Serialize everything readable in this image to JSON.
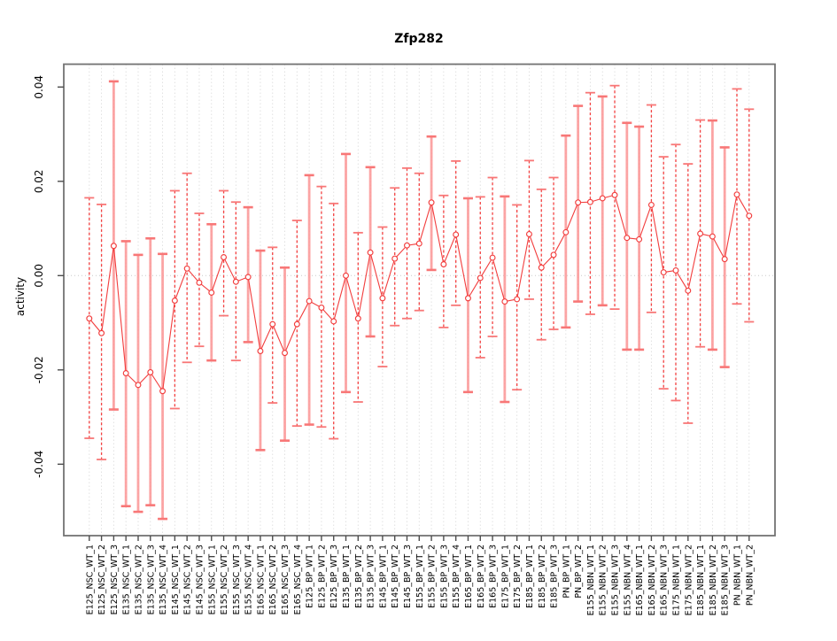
{
  "title": "Zfp282",
  "chart_data": {
    "type": "scatter",
    "subtype": "points-with-error-bars-connected",
    "title": "Zfp282",
    "xlabel": "",
    "ylabel": "activity",
    "ylim": [
      -0.055,
      0.0455
    ],
    "yticks": [
      -0.04,
      -0.02,
      0.0,
      0.02,
      0.04
    ],
    "grid": "vertical dashed gridline at every category; dotted horizontal line at y=0",
    "legend": "none",
    "categories": [
      "E125_NSC_WT_1",
      "E125_NSC_WT_2",
      "E125_NSC_WT_3",
      "E135_NSC_WT_1",
      "E135_NSC_WT_2",
      "E135_NSC_WT_3",
      "E135_NSC_WT_4",
      "E145_NSC_WT_1",
      "E145_NSC_WT_2",
      "E145_NSC_WT_3",
      "E155_NSC_WT_1",
      "E155_NSC_WT_2",
      "E155_NSC_WT_3",
      "E155_NSC_WT_4",
      "E165_NSC_WT_1",
      "E165_NSC_WT_2",
      "E165_NSC_WT_3",
      "E165_NSC_WT_4",
      "E125_BP_WT_1",
      "E125_BP_WT_2",
      "E125_BP_WT_3",
      "E135_BP_WT_1",
      "E135_BP_WT_2",
      "E135_BP_WT_3",
      "E145_BP_WT_1",
      "E145_BP_WT_2",
      "E145_BP_WT_3",
      "E155_BP_WT_1",
      "E155_BP_WT_2",
      "E155_BP_WT_3",
      "E155_BP_WT_4",
      "E165_BP_WT_1",
      "E165_BP_WT_2",
      "E165_BP_WT_3",
      "E175_BP_WT_1",
      "E175_BP_WT_2",
      "E185_BP_WT_1",
      "E185_BP_WT_2",
      "E185_BP_WT_3",
      "PN_BP_WT_1",
      "PN_BP_WT_2",
      "E155_NBN_WT_1",
      "E155_NBN_WT_2",
      "E155_NBN_WT_3",
      "E155_NBN_WT_4",
      "E165_NBN_WT_1",
      "E165_NBN_WT_2",
      "E165_NBN_WT_3",
      "E175_NBN_WT_1",
      "E175_NBN_WT_2",
      "E185_NBN_WT_1",
      "E185_NBN_WT_2",
      "E185_NBN_WT_3",
      "PN_NBN_WT_1",
      "PN_NBN_WT_2"
    ],
    "series": [
      {
        "name": "activity",
        "values": [
          -0.0091,
          -0.0122,
          0.0063,
          -0.0207,
          -0.0232,
          -0.0205,
          -0.0245,
          -0.0053,
          0.0015,
          -0.0015,
          -0.0036,
          0.0039,
          -0.0013,
          -0.0003,
          -0.016,
          -0.0103,
          -0.0164,
          -0.0103,
          -0.0054,
          -0.0068,
          -0.0097,
          0.0,
          -0.0091,
          0.0049,
          -0.0048,
          0.0036,
          0.0064,
          0.0068,
          0.0155,
          0.0024,
          0.0087,
          -0.0048,
          -0.0005,
          0.0038,
          -0.0055,
          -0.005,
          0.0088,
          0.0017,
          0.0044,
          0.0092,
          0.0155,
          0.0156,
          0.0164,
          0.0171,
          0.008,
          0.0077,
          0.015,
          0.0007,
          0.0011,
          -0.0032,
          0.0089,
          0.0083,
          0.0035,
          0.0172,
          0.0127
        ]
      },
      {
        "name": "lower",
        "values": [
          -0.0345,
          -0.039,
          -0.0284,
          -0.0489,
          -0.0501,
          -0.0487,
          -0.0516,
          -0.0282,
          -0.0184,
          -0.015,
          -0.018,
          -0.0085,
          -0.018,
          -0.0141,
          -0.037,
          -0.027,
          -0.035,
          -0.0319,
          -0.0316,
          -0.0321,
          -0.0346,
          -0.0247,
          -0.0268,
          -0.0129,
          -0.0193,
          -0.0106,
          -0.0091,
          -0.0074,
          0.0012,
          -0.011,
          -0.0063,
          -0.0247,
          -0.0174,
          -0.0129,
          -0.0268,
          -0.0242,
          -0.005,
          -0.0136,
          -0.0114,
          -0.011,
          -0.0055,
          -0.0082,
          -0.0063,
          -0.0071,
          -0.0157,
          -0.0157,
          -0.0078,
          -0.024,
          -0.0265,
          -0.0313,
          -0.0151,
          -0.0157,
          -0.0194,
          -0.006,
          -0.0098
        ]
      },
      {
        "name": "upper",
        "values": [
          0.0165,
          0.0151,
          0.0412,
          0.0073,
          0.0044,
          0.0079,
          0.0046,
          0.018,
          0.0217,
          0.0132,
          0.0109,
          0.018,
          0.0156,
          0.0145,
          0.0053,
          0.006,
          0.0017,
          0.0117,
          0.0213,
          0.0189,
          0.0153,
          0.0258,
          0.0091,
          0.023,
          0.0103,
          0.0186,
          0.0228,
          0.0217,
          0.0295,
          0.017,
          0.0243,
          0.0164,
          0.0167,
          0.0208,
          0.0168,
          0.015,
          0.0244,
          0.0183,
          0.0208,
          0.0297,
          0.036,
          0.0388,
          0.038,
          0.0403,
          0.0324,
          0.0316,
          0.0362,
          0.0252,
          0.0278,
          0.0237,
          0.033,
          0.0329,
          0.0272,
          0.0396,
          0.0353
        ]
      }
    ],
    "stem_style": [
      "red",
      "red",
      "pink",
      "pink",
      "pink",
      "pink",
      "pink",
      "red",
      "red",
      "red",
      "pink",
      "red",
      "red",
      "pink",
      "pink",
      "red",
      "pink",
      "red",
      "pink",
      "red",
      "red",
      "pink",
      "red",
      "pink",
      "red",
      "red",
      "red",
      "red",
      "pink",
      "red",
      "red",
      "pink",
      "red",
      "red",
      "pink",
      "red",
      "red",
      "red",
      "red",
      "pink",
      "pink",
      "red",
      "pink",
      "red",
      "pink",
      "pink",
      "red",
      "red",
      "red",
      "red",
      "red",
      "pink",
      "pink",
      "red",
      "red"
    ],
    "colors": {
      "point": "#f23d3d",
      "line": "#f23d3d",
      "stem_red": "#f34040",
      "stem_pink": "#fb9595",
      "cap": "#f87777",
      "gridline": "#dedede",
      "zero_line": "#c8c8c8",
      "box": "#737373",
      "tick": "#4d4d4d"
    }
  }
}
